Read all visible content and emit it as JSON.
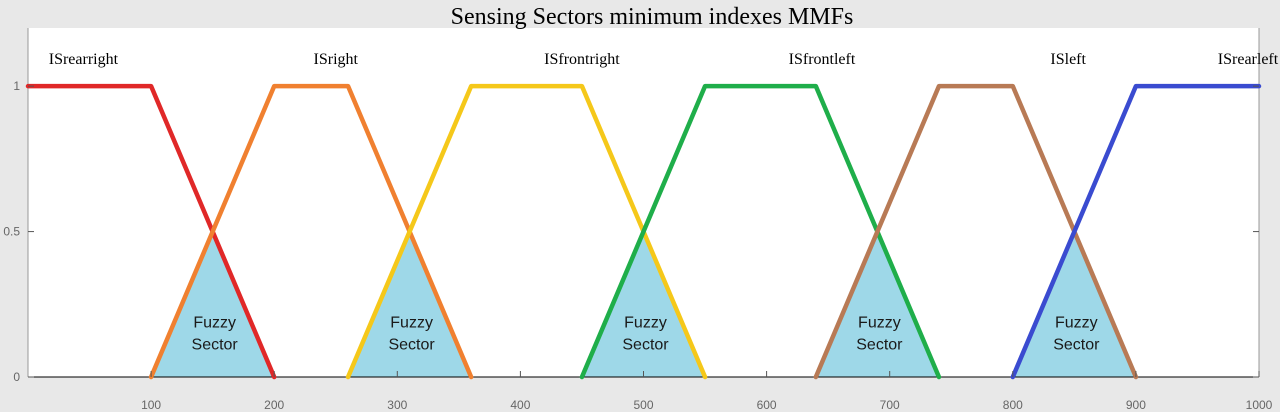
{
  "chart_data": {
    "type": "line",
    "title": "Sensing Sectors minimum indexes MMFs",
    "xlim": [
      0,
      1000
    ],
    "ylim": [
      0,
      1.2
    ],
    "x_ticks": [
      100,
      200,
      300,
      400,
      500,
      600,
      700,
      800,
      900,
      1000
    ],
    "y_ticks": [
      0,
      0.5,
      1
    ],
    "y_tick_labels": [
      "0",
      "0.5",
      "1"
    ],
    "grid": false,
    "series": [
      {
        "name": "ISrearright",
        "color": "#e02828",
        "points": [
          [
            0,
            1
          ],
          [
            100,
            1
          ],
          [
            200,
            0
          ]
        ],
        "label_x": 45
      },
      {
        "name": "ISright",
        "color": "#f08030",
        "points": [
          [
            100,
            0
          ],
          [
            200,
            1
          ],
          [
            260,
            1
          ],
          [
            360,
            0
          ]
        ],
        "label_x": 250
      },
      {
        "name": "ISfrontright",
        "color": "#f5c81a",
        "points": [
          [
            260,
            0
          ],
          [
            360,
            1
          ],
          [
            450,
            1
          ],
          [
            550,
            0
          ]
        ],
        "label_x": 450
      },
      {
        "name": "ISfrontleft",
        "color": "#1fae4a",
        "points": [
          [
            450,
            0
          ],
          [
            550,
            1
          ],
          [
            640,
            1
          ],
          [
            740,
            0
          ]
        ],
        "label_x": 645
      },
      {
        "name": "ISleft",
        "color": "#b87a55",
        "points": [
          [
            640,
            0
          ],
          [
            740,
            1
          ],
          [
            800,
            1
          ],
          [
            900,
            0
          ]
        ],
        "label_x": 845
      },
      {
        "name": "ISrearleft",
        "color": "#3a4bd0",
        "points": [
          [
            800,
            0
          ],
          [
            900,
            1
          ],
          [
            1000,
            1
          ]
        ],
        "label_x": 1025
      }
    ],
    "fuzzy_sectors": [
      {
        "label_line1": "Fuzzy",
        "label_line2": "Sector",
        "left": 100,
        "peak": 150,
        "right": 200,
        "peak_y": 0.5
      },
      {
        "label_line1": "Fuzzy",
        "label_line2": "Sector",
        "left": 260,
        "peak": 310,
        "right": 360,
        "peak_y": 0.5
      },
      {
        "label_line1": "Fuzzy",
        "label_line2": "Sector",
        "left": 450,
        "peak": 500,
        "right": 550,
        "peak_y": 0.5
      },
      {
        "label_line1": "Fuzzy",
        "label_line2": "Sector",
        "left": 640,
        "peak": 690,
        "right": 740,
        "peak_y": 0.5
      },
      {
        "label_line1": "Fuzzy",
        "label_line2": "Sector",
        "left": 800,
        "peak": 850,
        "right": 900,
        "peak_y": 0.5
      }
    ],
    "sector_fill_color": "#9ed8e8"
  }
}
